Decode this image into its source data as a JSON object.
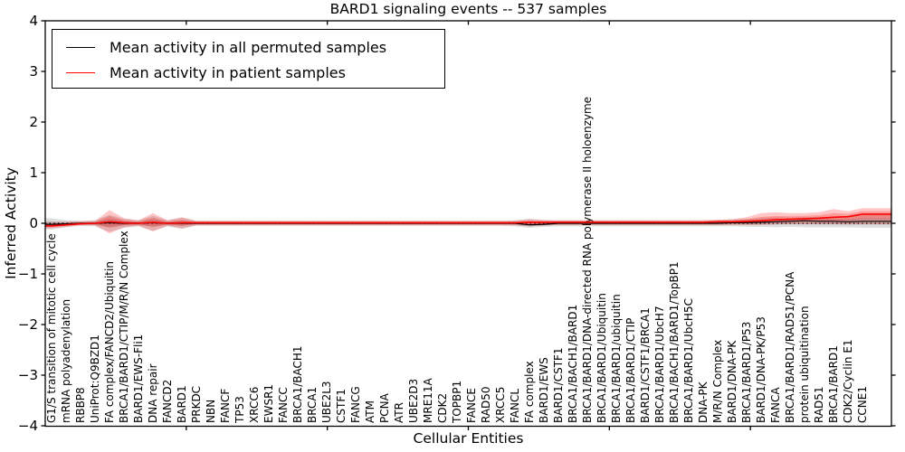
{
  "title": "BARD1 signaling events -- 537 samples",
  "axes": {
    "ylabel": "Inferred Activity",
    "xlabel": "Cellular Entities"
  },
  "legend": {
    "items": [
      {
        "label": "Mean activity in all permuted samples",
        "color": "#000000"
      },
      {
        "label": "Mean activity in patient samples",
        "color": "#ff0000"
      }
    ]
  },
  "chart_data": {
    "type": "line",
    "title": "BARD1 signaling events -- 537 samples",
    "xlabel": "Cellular Entities",
    "ylabel": "Inferred Activity",
    "ylim": [
      -4,
      4
    ],
    "yticks": [
      {
        "label": "4",
        "value": 4
      },
      {
        "label": "3",
        "value": 3
      },
      {
        "label": "2",
        "value": 2
      },
      {
        "label": "1",
        "value": 1
      },
      {
        "label": "0",
        "value": 0
      },
      {
        "label": "−1",
        "value": -1
      },
      {
        "label": "−2",
        "value": -2
      },
      {
        "label": "−3",
        "value": -3
      },
      {
        "label": "−4",
        "value": -4
      }
    ],
    "grid": false,
    "zero_line_style": "dotted",
    "legend_position": "upper left",
    "categories": [
      "G1/S transition of mitotic cell cycle",
      "mRNA polyadenylation",
      "RBBP8",
      "UniProt:Q9BZD1",
      "FA complex/FANCD2/Ubiquitin",
      "BRCA1/BARD1/CTIP/M/R/N Complex",
      "BARD1/EWS-Fli1",
      "DNA repair",
      "FANCD2",
      "BARD1",
      "PRKDC",
      "NBN",
      "FANCF",
      "TP53",
      "XRCC6",
      "EWSR1",
      "FANCC",
      "BRCA1/BACH1",
      "BRCA1",
      "UBE2L3",
      "CSTF1",
      "FANCG",
      "ATM",
      "PCNA",
      "ATR",
      "UBE2D3",
      "MRE11A",
      "CDK2",
      "TOPBP1",
      "FANCE",
      "RAD50",
      "XRCC5",
      "FANCL",
      "FA complex",
      "BARD1/EWS",
      "BARD1/CSTF1",
      "BRCA1/BACH1/BARD1",
      "BRCA1/BARD1/DNA-directed RNA polymerase II holoenzyme",
      "BRCA1/BARD1/Ubiquitin",
      "BRCA1/BARD1/ubiquitin",
      "BRCA1/BARD1/CTIP",
      "BARD1/CSTF1/BRCA1",
      "BRCA1/BARD1/UbcH7",
      "BRCA1/BACH1/BARD1/TopBP1",
      "BRCA1/BARD1/UbcH5C",
      "DNA-PK",
      "M/R/N Complex",
      "BARD1/DNA-PK",
      "BRCA1/BARD1/P53",
      "BARD1/DNA-PK/P53",
      "FANCA",
      "BRCA1/BARD1/RAD51/PCNA",
      "protein ubiquitination",
      "RAD51",
      "BRCA1/BARD1",
      "CDK2/Cyclin E1",
      "CCNE1"
    ],
    "series": [
      {
        "name": "Mean activity in all permuted samples",
        "color": "#000000",
        "line_width": 1.2,
        "band_fill": "rgba(0,0,0,0.13)",
        "values": [
          -0.02,
          -0.01,
          0,
          0,
          0.01,
          0,
          0,
          0.01,
          0,
          0,
          0,
          0,
          0,
          0,
          0,
          0,
          0,
          0,
          0,
          0,
          0,
          0,
          0,
          0,
          0,
          0,
          0,
          0,
          0,
          0,
          0,
          0,
          0,
          -0.03,
          -0.02,
          0,
          0,
          0,
          0,
          0,
          0,
          0,
          0,
          0,
          0,
          0,
          0,
          0.01,
          0.01,
          0.02,
          0.03,
          0.04,
          0.05,
          0.04,
          0.04,
          0.03,
          0.04
        ],
        "band_upper": [
          0.1,
          0.06,
          0.05,
          0.06,
          0.17,
          0.09,
          0.06,
          0.15,
          0.06,
          0.11,
          0.05,
          0.05,
          0.05,
          0.05,
          0.05,
          0.05,
          0.05,
          0.05,
          0.05,
          0.05,
          0.05,
          0.05,
          0.05,
          0.05,
          0.05,
          0.05,
          0.05,
          0.05,
          0.05,
          0.05,
          0.05,
          0.05,
          0.06,
          0.09,
          0.07,
          0.06,
          0.06,
          0.06,
          0.06,
          0.06,
          0.06,
          0.06,
          0.06,
          0.06,
          0.06,
          0.06,
          0.07,
          0.08,
          0.09,
          0.1,
          0.12,
          0.11,
          0.12,
          0.13,
          0.13,
          0.13,
          0.16
        ],
        "band_lower": [
          -0.12,
          -0.08,
          -0.05,
          -0.06,
          -0.17,
          -0.09,
          -0.06,
          -0.15,
          -0.06,
          -0.11,
          -0.05,
          -0.05,
          -0.05,
          -0.05,
          -0.05,
          -0.05,
          -0.05,
          -0.05,
          -0.05,
          -0.05,
          -0.05,
          -0.05,
          -0.05,
          -0.05,
          -0.05,
          -0.05,
          -0.05,
          -0.05,
          -0.05,
          -0.05,
          -0.05,
          -0.05,
          -0.06,
          -0.09,
          -0.07,
          -0.06,
          -0.06,
          -0.06,
          -0.06,
          -0.06,
          -0.06,
          -0.06,
          -0.06,
          -0.06,
          -0.06,
          -0.06,
          -0.06,
          -0.06,
          -0.07,
          -0.07,
          -0.08,
          -0.07,
          -0.08,
          -0.08,
          -0.08,
          -0.08,
          -0.09
        ]
      },
      {
        "name": "Mean activity in patient samples",
        "color": "#ff0000",
        "line_width": 1.6,
        "band_fill": "rgba(255,0,0,0.22)",
        "values": [
          -0.05,
          -0.03,
          -0.01,
          0,
          0.03,
          0.01,
          0,
          0.02,
          0,
          0.01,
          0.01,
          0.01,
          0.01,
          0.01,
          0.01,
          0.01,
          0.01,
          0.01,
          0.01,
          0.01,
          0.01,
          0.01,
          0.01,
          0.01,
          0.01,
          0.01,
          0.01,
          0.01,
          0.01,
          0.01,
          0.01,
          0.01,
          0.01,
          0.02,
          0.02,
          0.02,
          0.02,
          0.02,
          0.02,
          0.02,
          0.02,
          0.02,
          0.02,
          0.02,
          0.02,
          0.02,
          0.03,
          0.03,
          0.04,
          0.05,
          0.07,
          0.08,
          0.09,
          0.1,
          0.12,
          0.13,
          0.18
        ],
        "band_upper": [
          0.02,
          0.03,
          0.04,
          0.05,
          0.26,
          0.1,
          0.06,
          0.2,
          0.06,
          0.12,
          0.05,
          0.05,
          0.05,
          0.05,
          0.05,
          0.05,
          0.05,
          0.05,
          0.05,
          0.05,
          0.05,
          0.05,
          0.05,
          0.05,
          0.05,
          0.05,
          0.05,
          0.05,
          0.05,
          0.05,
          0.05,
          0.05,
          0.05,
          0.08,
          0.06,
          0.06,
          0.06,
          0.06,
          0.06,
          0.06,
          0.06,
          0.06,
          0.06,
          0.06,
          0.06,
          0.06,
          0.07,
          0.08,
          0.12,
          0.2,
          0.22,
          0.2,
          0.2,
          0.22,
          0.28,
          0.24,
          0.3
        ],
        "band_lower": [
          -0.1,
          -0.07,
          -0.04,
          -0.04,
          -0.2,
          -0.08,
          -0.05,
          -0.16,
          -0.05,
          -0.1,
          -0.04,
          -0.04,
          -0.04,
          -0.04,
          -0.04,
          -0.04,
          -0.04,
          -0.04,
          -0.04,
          -0.04,
          -0.04,
          -0.04,
          -0.04,
          -0.04,
          -0.04,
          -0.04,
          -0.04,
          -0.04,
          -0.04,
          -0.04,
          -0.04,
          -0.04,
          -0.04,
          -0.06,
          -0.04,
          -0.03,
          -0.03,
          -0.03,
          -0.03,
          -0.03,
          -0.03,
          -0.03,
          -0.03,
          -0.03,
          -0.03,
          -0.03,
          -0.03,
          -0.03,
          -0.03,
          -0.03,
          -0.02,
          -0.02,
          -0.02,
          -0.02,
          -0.02,
          -0.02,
          -0.02
        ]
      }
    ]
  }
}
